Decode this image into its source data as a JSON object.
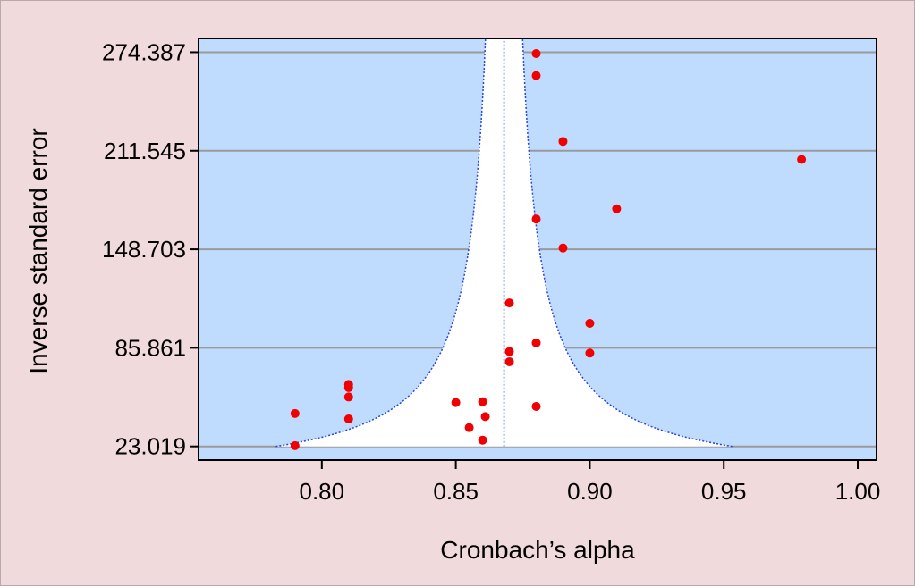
{
  "chart_data": {
    "type": "scatter",
    "title": "",
    "xlabel": "Cronbach’s alpha",
    "ylabel": "Inverse standard error",
    "xlim": [
      0.754,
      1.007
    ],
    "ylim": [
      14.3,
      283.2
    ],
    "xticks": [
      0.8,
      0.85,
      0.9,
      0.95,
      1.0
    ],
    "xtick_labels": [
      "0.80",
      "0.85",
      "0.90",
      "0.95",
      "1.00"
    ],
    "yticks": [
      23.019,
      85.861,
      148.703,
      211.545,
      274.387
    ],
    "ytick_labels": [
      "23.019",
      "85.861",
      "148.703",
      "211.545",
      "274.387"
    ],
    "grid": "horizontal",
    "pooled_estimate": 0.868,
    "funnel": {
      "center": 0.868,
      "z": 1.96,
      "y_min": 23.019,
      "y_max": 283.2
    },
    "colors": {
      "plot_background": "#bfdcff",
      "funnel_fill": "#ffffff",
      "funnel_line": "#2a45e0",
      "points": "#f00000",
      "grid": "#9a9a9a",
      "page_background": "#f1dadb"
    },
    "points": [
      {
        "x": 0.79,
        "y": 23.5
      },
      {
        "x": 0.79,
        "y": 44.0
      },
      {
        "x": 0.81,
        "y": 40.5
      },
      {
        "x": 0.81,
        "y": 54.5
      },
      {
        "x": 0.81,
        "y": 60.5
      },
      {
        "x": 0.81,
        "y": 62.5
      },
      {
        "x": 0.85,
        "y": 51.0
      },
      {
        "x": 0.855,
        "y": 35.0
      },
      {
        "x": 0.86,
        "y": 27.0
      },
      {
        "x": 0.86,
        "y": 51.5
      },
      {
        "x": 0.861,
        "y": 42.0
      },
      {
        "x": 0.87,
        "y": 77.0
      },
      {
        "x": 0.87,
        "y": 83.5
      },
      {
        "x": 0.87,
        "y": 114.5
      },
      {
        "x": 0.88,
        "y": 48.5
      },
      {
        "x": 0.88,
        "y": 89.0
      },
      {
        "x": 0.88,
        "y": 168.0
      },
      {
        "x": 0.88,
        "y": 259.5
      },
      {
        "x": 0.88,
        "y": 273.5
      },
      {
        "x": 0.89,
        "y": 149.5
      },
      {
        "x": 0.89,
        "y": 217.5
      },
      {
        "x": 0.9,
        "y": 82.5
      },
      {
        "x": 0.9,
        "y": 101.5
      },
      {
        "x": 0.91,
        "y": 174.5
      },
      {
        "x": 0.979,
        "y": 206.0
      }
    ]
  }
}
